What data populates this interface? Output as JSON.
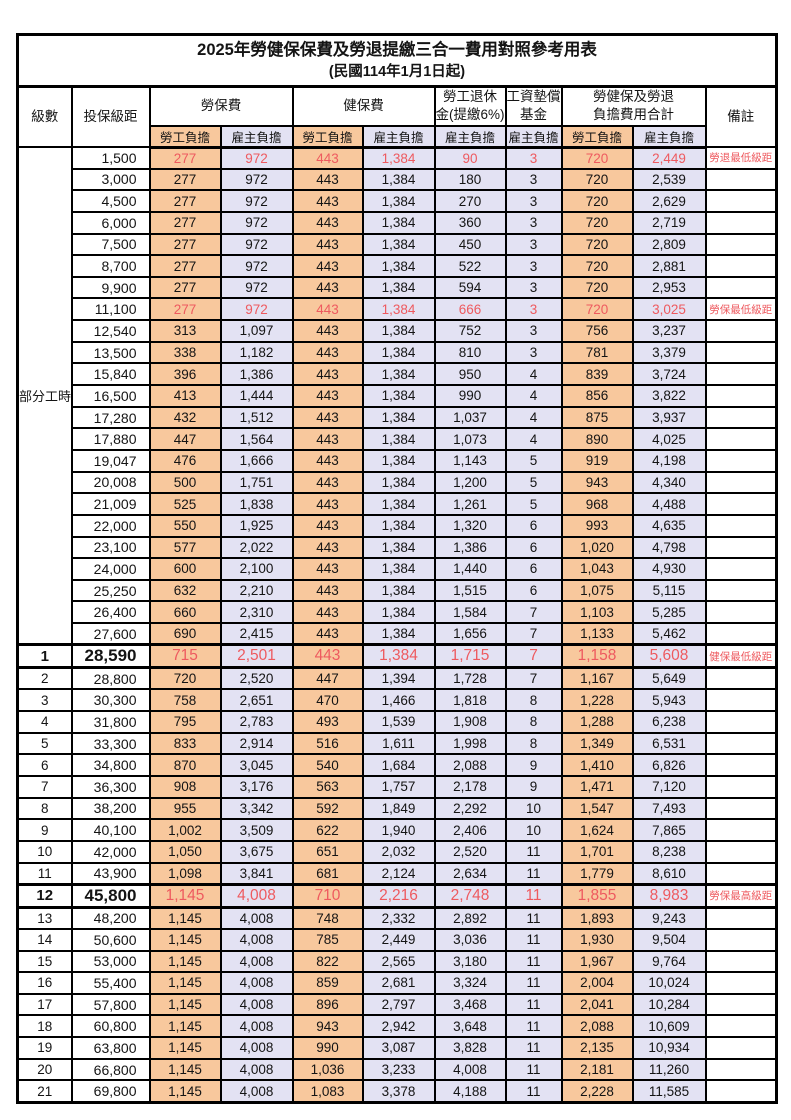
{
  "title": "2025年勞健保保費及勞退提繳三合一費用對照參考用表",
  "subtitle": "(民國114年1月1日起)",
  "header": {
    "level": "級數",
    "bracket": "投保級距",
    "labor_insurance": "勞保費",
    "health_insurance": "健保費",
    "pension_line1": "勞工退休",
    "pension_line2": "金(提繳6%)",
    "wage_fund_line1": "工資墊償",
    "wage_fund_line2": "基金",
    "total_line1": "勞健保及勞退",
    "total_line2": "負擔費用合計",
    "remark": "備註",
    "employee": "勞工負擔",
    "employer": "雇主負擔"
  },
  "part_time_label": "部分工時",
  "colors": {
    "employee_bg": "#f8c89d",
    "employer_bg": "#e3e2f3",
    "highlight_red": "#ee5a5f",
    "border": "#000000"
  },
  "rows": [
    {
      "level": "",
      "bracket": "1,500",
      "li_emp": "277",
      "li_er": "972",
      "hi_emp": "443",
      "hi_er": "1,384",
      "pension": "90",
      "fund": "3",
      "tot_emp": "720",
      "tot_er": "2,449",
      "remark": "勞退最低級距",
      "hl": true,
      "big": false
    },
    {
      "level": "",
      "bracket": "3,000",
      "li_emp": "277",
      "li_er": "972",
      "hi_emp": "443",
      "hi_er": "1,384",
      "pension": "180",
      "fund": "3",
      "tot_emp": "720",
      "tot_er": "2,539",
      "remark": "",
      "hl": false,
      "big": false
    },
    {
      "level": "",
      "bracket": "4,500",
      "li_emp": "277",
      "li_er": "972",
      "hi_emp": "443",
      "hi_er": "1,384",
      "pension": "270",
      "fund": "3",
      "tot_emp": "720",
      "tot_er": "2,629",
      "remark": "",
      "hl": false,
      "big": false
    },
    {
      "level": "",
      "bracket": "6,000",
      "li_emp": "277",
      "li_er": "972",
      "hi_emp": "443",
      "hi_er": "1,384",
      "pension": "360",
      "fund": "3",
      "tot_emp": "720",
      "tot_er": "2,719",
      "remark": "",
      "hl": false,
      "big": false
    },
    {
      "level": "",
      "bracket": "7,500",
      "li_emp": "277",
      "li_er": "972",
      "hi_emp": "443",
      "hi_er": "1,384",
      "pension": "450",
      "fund": "3",
      "tot_emp": "720",
      "tot_er": "2,809",
      "remark": "",
      "hl": false,
      "big": false
    },
    {
      "level": "",
      "bracket": "8,700",
      "li_emp": "277",
      "li_er": "972",
      "hi_emp": "443",
      "hi_er": "1,384",
      "pension": "522",
      "fund": "3",
      "tot_emp": "720",
      "tot_er": "2,881",
      "remark": "",
      "hl": false,
      "big": false
    },
    {
      "level": "",
      "bracket": "9,900",
      "li_emp": "277",
      "li_er": "972",
      "hi_emp": "443",
      "hi_er": "1,384",
      "pension": "594",
      "fund": "3",
      "tot_emp": "720",
      "tot_er": "2,953",
      "remark": "",
      "hl": false,
      "big": false
    },
    {
      "level": "",
      "bracket": "11,100",
      "li_emp": "277",
      "li_er": "972",
      "hi_emp": "443",
      "hi_er": "1,384",
      "pension": "666",
      "fund": "3",
      "tot_emp": "720",
      "tot_er": "3,025",
      "remark": "勞保最低級距",
      "hl": true,
      "big": false
    },
    {
      "level": "",
      "bracket": "12,540",
      "li_emp": "313",
      "li_er": "1,097",
      "hi_emp": "443",
      "hi_er": "1,384",
      "pension": "752",
      "fund": "3",
      "tot_emp": "756",
      "tot_er": "3,237",
      "remark": "",
      "hl": false,
      "big": false
    },
    {
      "level": "",
      "bracket": "13,500",
      "li_emp": "338",
      "li_er": "1,182",
      "hi_emp": "443",
      "hi_er": "1,384",
      "pension": "810",
      "fund": "3",
      "tot_emp": "781",
      "tot_er": "3,379",
      "remark": "",
      "hl": false,
      "big": false
    },
    {
      "level": "",
      "bracket": "15,840",
      "li_emp": "396",
      "li_er": "1,386",
      "hi_emp": "443",
      "hi_er": "1,384",
      "pension": "950",
      "fund": "4",
      "tot_emp": "839",
      "tot_er": "3,724",
      "remark": "",
      "hl": false,
      "big": false
    },
    {
      "level": "",
      "bracket": "16,500",
      "li_emp": "413",
      "li_er": "1,444",
      "hi_emp": "443",
      "hi_er": "1,384",
      "pension": "990",
      "fund": "4",
      "tot_emp": "856",
      "tot_er": "3,822",
      "remark": "",
      "hl": false,
      "big": false
    },
    {
      "level": "",
      "bracket": "17,280",
      "li_emp": "432",
      "li_er": "1,512",
      "hi_emp": "443",
      "hi_er": "1,384",
      "pension": "1,037",
      "fund": "4",
      "tot_emp": "875",
      "tot_er": "3,937",
      "remark": "",
      "hl": false,
      "big": false
    },
    {
      "level": "",
      "bracket": "17,880",
      "li_emp": "447",
      "li_er": "1,564",
      "hi_emp": "443",
      "hi_er": "1,384",
      "pension": "1,073",
      "fund": "4",
      "tot_emp": "890",
      "tot_er": "4,025",
      "remark": "",
      "hl": false,
      "big": false
    },
    {
      "level": "",
      "bracket": "19,047",
      "li_emp": "476",
      "li_er": "1,666",
      "hi_emp": "443",
      "hi_er": "1,384",
      "pension": "1,143",
      "fund": "5",
      "tot_emp": "919",
      "tot_er": "4,198",
      "remark": "",
      "hl": false,
      "big": false
    },
    {
      "level": "",
      "bracket": "20,008",
      "li_emp": "500",
      "li_er": "1,751",
      "hi_emp": "443",
      "hi_er": "1,384",
      "pension": "1,200",
      "fund": "5",
      "tot_emp": "943",
      "tot_er": "4,340",
      "remark": "",
      "hl": false,
      "big": false
    },
    {
      "level": "",
      "bracket": "21,009",
      "li_emp": "525",
      "li_er": "1,838",
      "hi_emp": "443",
      "hi_er": "1,384",
      "pension": "1,261",
      "fund": "5",
      "tot_emp": "968",
      "tot_er": "4,488",
      "remark": "",
      "hl": false,
      "big": false
    },
    {
      "level": "",
      "bracket": "22,000",
      "li_emp": "550",
      "li_er": "1,925",
      "hi_emp": "443",
      "hi_er": "1,384",
      "pension": "1,320",
      "fund": "6",
      "tot_emp": "993",
      "tot_er": "4,635",
      "remark": "",
      "hl": false,
      "big": false
    },
    {
      "level": "",
      "bracket": "23,100",
      "li_emp": "577",
      "li_er": "2,022",
      "hi_emp": "443",
      "hi_er": "1,384",
      "pension": "1,386",
      "fund": "6",
      "tot_emp": "1,020",
      "tot_er": "4,798",
      "remark": "",
      "hl": false,
      "big": false
    },
    {
      "level": "",
      "bracket": "24,000",
      "li_emp": "600",
      "li_er": "2,100",
      "hi_emp": "443",
      "hi_er": "1,384",
      "pension": "1,440",
      "fund": "6",
      "tot_emp": "1,043",
      "tot_er": "4,930",
      "remark": "",
      "hl": false,
      "big": false
    },
    {
      "level": "",
      "bracket": "25,250",
      "li_emp": "632",
      "li_er": "2,210",
      "hi_emp": "443",
      "hi_er": "1,384",
      "pension": "1,515",
      "fund": "6",
      "tot_emp": "1,075",
      "tot_er": "5,115",
      "remark": "",
      "hl": false,
      "big": false
    },
    {
      "level": "",
      "bracket": "26,400",
      "li_emp": "660",
      "li_er": "2,310",
      "hi_emp": "443",
      "hi_er": "1,384",
      "pension": "1,584",
      "fund": "7",
      "tot_emp": "1,103",
      "tot_er": "5,285",
      "remark": "",
      "hl": false,
      "big": false
    },
    {
      "level": "",
      "bracket": "27,600",
      "li_emp": "690",
      "li_er": "2,415",
      "hi_emp": "443",
      "hi_er": "1,384",
      "pension": "1,656",
      "fund": "7",
      "tot_emp": "1,133",
      "tot_er": "5,462",
      "remark": "",
      "hl": false,
      "big": false
    },
    {
      "level": "1",
      "bracket": "28,590",
      "li_emp": "715",
      "li_er": "2,501",
      "hi_emp": "443",
      "hi_er": "1,384",
      "pension": "1,715",
      "fund": "7",
      "tot_emp": "1,158",
      "tot_er": "5,608",
      "remark": "健保最低級距",
      "hl": true,
      "big": true
    },
    {
      "level": "2",
      "bracket": "28,800",
      "li_emp": "720",
      "li_er": "2,520",
      "hi_emp": "447",
      "hi_er": "1,394",
      "pension": "1,728",
      "fund": "7",
      "tot_emp": "1,167",
      "tot_er": "5,649",
      "remark": "",
      "hl": false,
      "big": false
    },
    {
      "level": "3",
      "bracket": "30,300",
      "li_emp": "758",
      "li_er": "2,651",
      "hi_emp": "470",
      "hi_er": "1,466",
      "pension": "1,818",
      "fund": "8",
      "tot_emp": "1,228",
      "tot_er": "5,943",
      "remark": "",
      "hl": false,
      "big": false
    },
    {
      "level": "4",
      "bracket": "31,800",
      "li_emp": "795",
      "li_er": "2,783",
      "hi_emp": "493",
      "hi_er": "1,539",
      "pension": "1,908",
      "fund": "8",
      "tot_emp": "1,288",
      "tot_er": "6,238",
      "remark": "",
      "hl": false,
      "big": false
    },
    {
      "level": "5",
      "bracket": "33,300",
      "li_emp": "833",
      "li_er": "2,914",
      "hi_emp": "516",
      "hi_er": "1,611",
      "pension": "1,998",
      "fund": "8",
      "tot_emp": "1,349",
      "tot_er": "6,531",
      "remark": "",
      "hl": false,
      "big": false
    },
    {
      "level": "6",
      "bracket": "34,800",
      "li_emp": "870",
      "li_er": "3,045",
      "hi_emp": "540",
      "hi_er": "1,684",
      "pension": "2,088",
      "fund": "9",
      "tot_emp": "1,410",
      "tot_er": "6,826",
      "remark": "",
      "hl": false,
      "big": false
    },
    {
      "level": "7",
      "bracket": "36,300",
      "li_emp": "908",
      "li_er": "3,176",
      "hi_emp": "563",
      "hi_er": "1,757",
      "pension": "2,178",
      "fund": "9",
      "tot_emp": "1,471",
      "tot_er": "7,120",
      "remark": "",
      "hl": false,
      "big": false
    },
    {
      "level": "8",
      "bracket": "38,200",
      "li_emp": "955",
      "li_er": "3,342",
      "hi_emp": "592",
      "hi_er": "1,849",
      "pension": "2,292",
      "fund": "10",
      "tot_emp": "1,547",
      "tot_er": "7,493",
      "remark": "",
      "hl": false,
      "big": false
    },
    {
      "level": "9",
      "bracket": "40,100",
      "li_emp": "1,002",
      "li_er": "3,509",
      "hi_emp": "622",
      "hi_er": "1,940",
      "pension": "2,406",
      "fund": "10",
      "tot_emp": "1,624",
      "tot_er": "7,865",
      "remark": "",
      "hl": false,
      "big": false
    },
    {
      "level": "10",
      "bracket": "42,000",
      "li_emp": "1,050",
      "li_er": "3,675",
      "hi_emp": "651",
      "hi_er": "2,032",
      "pension": "2,520",
      "fund": "11",
      "tot_emp": "1,701",
      "tot_er": "8,238",
      "remark": "",
      "hl": false,
      "big": false
    },
    {
      "level": "11",
      "bracket": "43,900",
      "li_emp": "1,098",
      "li_er": "3,841",
      "hi_emp": "681",
      "hi_er": "2,124",
      "pension": "2,634",
      "fund": "11",
      "tot_emp": "1,779",
      "tot_er": "8,610",
      "remark": "",
      "hl": false,
      "big": false
    },
    {
      "level": "12",
      "bracket": "45,800",
      "li_emp": "1,145",
      "li_er": "4,008",
      "hi_emp": "710",
      "hi_er": "2,216",
      "pension": "2,748",
      "fund": "11",
      "tot_emp": "1,855",
      "tot_er": "8,983",
      "remark": "勞保最高級距",
      "hl": true,
      "big": true
    },
    {
      "level": "13",
      "bracket": "48,200",
      "li_emp": "1,145",
      "li_er": "4,008",
      "hi_emp": "748",
      "hi_er": "2,332",
      "pension": "2,892",
      "fund": "11",
      "tot_emp": "1,893",
      "tot_er": "9,243",
      "remark": "",
      "hl": false,
      "big": false
    },
    {
      "level": "14",
      "bracket": "50,600",
      "li_emp": "1,145",
      "li_er": "4,008",
      "hi_emp": "785",
      "hi_er": "2,449",
      "pension": "3,036",
      "fund": "11",
      "tot_emp": "1,930",
      "tot_er": "9,504",
      "remark": "",
      "hl": false,
      "big": false
    },
    {
      "level": "15",
      "bracket": "53,000",
      "li_emp": "1,145",
      "li_er": "4,008",
      "hi_emp": "822",
      "hi_er": "2,565",
      "pension": "3,180",
      "fund": "11",
      "tot_emp": "1,967",
      "tot_er": "9,764",
      "remark": "",
      "hl": false,
      "big": false
    },
    {
      "level": "16",
      "bracket": "55,400",
      "li_emp": "1,145",
      "li_er": "4,008",
      "hi_emp": "859",
      "hi_er": "2,681",
      "pension": "3,324",
      "fund": "11",
      "tot_emp": "2,004",
      "tot_er": "10,024",
      "remark": "",
      "hl": false,
      "big": false
    },
    {
      "level": "17",
      "bracket": "57,800",
      "li_emp": "1,145",
      "li_er": "4,008",
      "hi_emp": "896",
      "hi_er": "2,797",
      "pension": "3,468",
      "fund": "11",
      "tot_emp": "2,041",
      "tot_er": "10,284",
      "remark": "",
      "hl": false,
      "big": false
    },
    {
      "level": "18",
      "bracket": "60,800",
      "li_emp": "1,145",
      "li_er": "4,008",
      "hi_emp": "943",
      "hi_er": "2,942",
      "pension": "3,648",
      "fund": "11",
      "tot_emp": "2,088",
      "tot_er": "10,609",
      "remark": "",
      "hl": false,
      "big": false
    },
    {
      "level": "19",
      "bracket": "63,800",
      "li_emp": "1,145",
      "li_er": "4,008",
      "hi_emp": "990",
      "hi_er": "3,087",
      "pension": "3,828",
      "fund": "11",
      "tot_emp": "2,135",
      "tot_er": "10,934",
      "remark": "",
      "hl": false,
      "big": false
    },
    {
      "level": "20",
      "bracket": "66,800",
      "li_emp": "1,145",
      "li_er": "4,008",
      "hi_emp": "1,036",
      "hi_er": "3,233",
      "pension": "4,008",
      "fund": "11",
      "tot_emp": "2,181",
      "tot_er": "11,260",
      "remark": "",
      "hl": false,
      "big": false
    },
    {
      "level": "21",
      "bracket": "69,800",
      "li_emp": "1,145",
      "li_er": "4,008",
      "hi_emp": "1,083",
      "hi_er": "3,378",
      "pension": "4,188",
      "fund": "11",
      "tot_emp": "2,228",
      "tot_er": "11,585",
      "remark": "",
      "hl": false,
      "big": false
    }
  ]
}
